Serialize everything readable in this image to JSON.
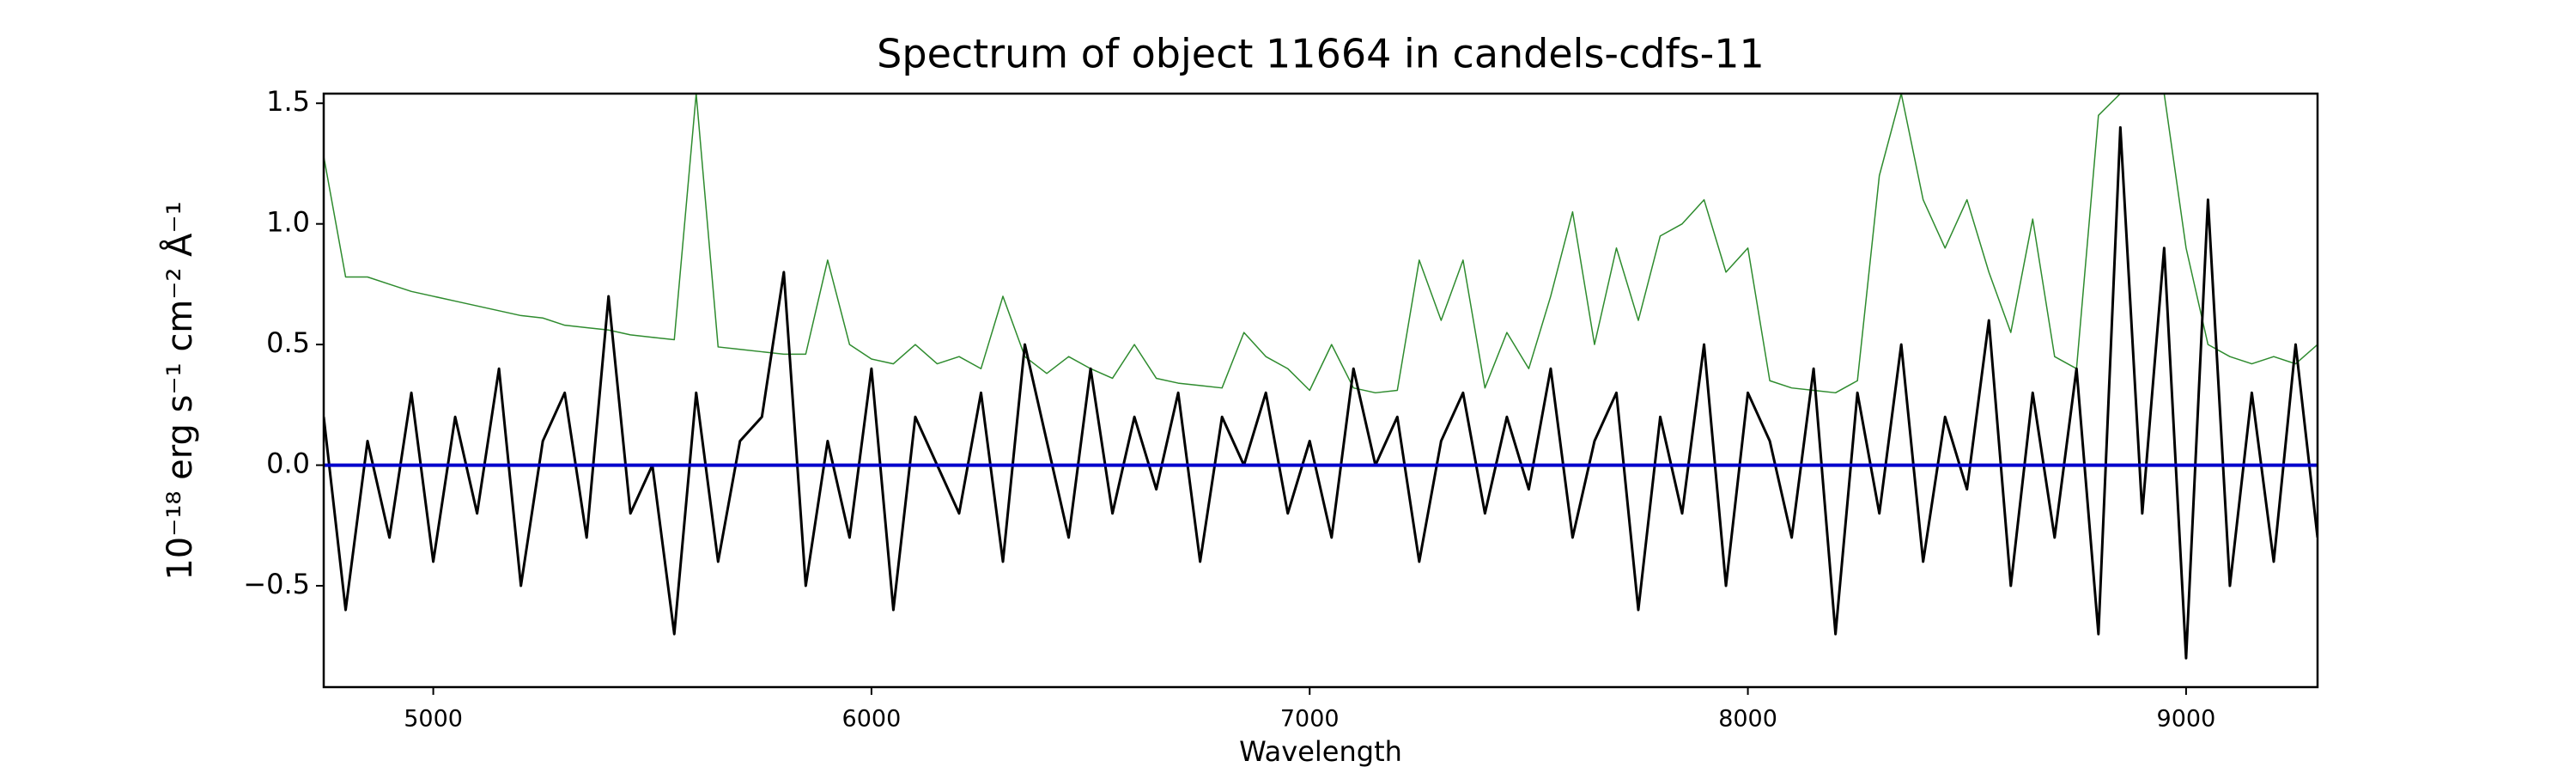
{
  "chart_data": {
    "type": "line",
    "title": "Spectrum of object 11664 in candels-cdfs-11",
    "xlabel": "Wavelength",
    "ylabel": "10⁻¹⁸ erg s⁻¹ cm⁻² Å⁻¹",
    "x": [
      4750,
      4800,
      4850,
      4900,
      4950,
      5000,
      5050,
      5100,
      5150,
      5200,
      5250,
      5300,
      5350,
      5400,
      5450,
      5500,
      5550,
      5600,
      5650,
      5700,
      5750,
      5800,
      5850,
      5900,
      5950,
      6000,
      6050,
      6100,
      6150,
      6200,
      6250,
      6300,
      6350,
      6400,
      6450,
      6500,
      6550,
      6600,
      6650,
      6700,
      6750,
      6800,
      6850,
      6900,
      6950,
      7000,
      7050,
      7100,
      7150,
      7200,
      7250,
      7300,
      7350,
      7400,
      7450,
      7500,
      7550,
      7600,
      7650,
      7700,
      7750,
      7800,
      7850,
      7900,
      7950,
      8000,
      8050,
      8100,
      8150,
      8200,
      8250,
      8300,
      8350,
      8400,
      8450,
      8500,
      8550,
      8600,
      8650,
      8700,
      8750,
      8800,
      8850,
      8900,
      8950,
      9000,
      9050,
      9100,
      9150,
      9200,
      9250,
      9300
    ],
    "series": [
      {
        "color": "#000000",
        "width": 3,
        "values": [
          0.2,
          -0.6,
          0.1,
          -0.3,
          0.3,
          -0.4,
          0.2,
          -0.2,
          0.4,
          -0.5,
          0.1,
          0.3,
          -0.3,
          0.7,
          -0.2,
          0.0,
          -0.7,
          0.3,
          -0.4,
          0.1,
          0.2,
          0.8,
          -0.5,
          0.1,
          -0.3,
          0.4,
          -0.6,
          0.2,
          0.0,
          -0.2,
          0.3,
          -0.4,
          0.5,
          0.1,
          -0.3,
          0.4,
          -0.2,
          0.2,
          -0.1,
          0.3,
          -0.4,
          0.2,
          0.0,
          0.3,
          -0.2,
          0.1,
          -0.3,
          0.4,
          0.0,
          0.2,
          -0.4,
          0.1,
          0.3,
          -0.2,
          0.2,
          -0.1,
          0.4,
          -0.3,
          0.1,
          0.3,
          -0.6,
          0.2,
          -0.2,
          0.5,
          -0.5,
          0.3,
          0.1,
          -0.3,
          0.4,
          -0.7,
          0.3,
          -0.2,
          0.5,
          -0.4,
          0.2,
          -0.1,
          0.6,
          -0.5,
          0.3,
          -0.3,
          0.4,
          -0.7,
          1.4,
          -0.2,
          0.9,
          -0.8,
          1.1,
          -0.5,
          0.3,
          -0.4,
          0.5,
          -0.3
        ]
      },
      {
        "color": "#2e8b2e",
        "width": 1.5,
        "values": [
          1.28,
          0.78,
          0.78,
          0.75,
          0.72,
          0.7,
          0.68,
          0.66,
          0.64,
          0.62,
          0.61,
          0.58,
          0.57,
          0.56,
          0.54,
          0.53,
          0.52,
          1.54,
          0.49,
          0.48,
          0.47,
          0.46,
          0.46,
          0.85,
          0.5,
          0.44,
          0.42,
          0.5,
          0.42,
          0.45,
          0.4,
          0.7,
          0.45,
          0.38,
          0.45,
          0.4,
          0.36,
          0.5,
          0.36,
          0.34,
          0.33,
          0.32,
          0.55,
          0.45,
          0.4,
          0.31,
          0.5,
          0.32,
          0.3,
          0.31,
          0.85,
          0.6,
          0.85,
          0.32,
          0.55,
          0.4,
          0.7,
          1.05,
          0.5,
          0.9,
          0.6,
          0.95,
          1.0,
          1.1,
          0.8,
          0.9,
          0.35,
          0.32,
          0.31,
          0.3,
          0.35,
          1.2,
          1.54,
          1.1,
          0.9,
          1.1,
          0.8,
          0.55,
          1.02,
          0.45,
          0.4,
          1.45,
          1.54,
          1.54,
          1.54,
          0.9,
          0.5,
          0.45,
          0.42,
          0.45,
          0.42,
          0.5
        ]
      },
      {
        "color": "#0000cc",
        "width": 4,
        "values": [
          0,
          0,
          0,
          0,
          0,
          0,
          0,
          0,
          0,
          0,
          0,
          0,
          0,
          0,
          0,
          0,
          0,
          0,
          0,
          0,
          0,
          0,
          0,
          0,
          0,
          0,
          0,
          0,
          0,
          0,
          0,
          0,
          0,
          0,
          0,
          0,
          0,
          0,
          0,
          0,
          0,
          0,
          0,
          0,
          0,
          0,
          0,
          0,
          0,
          0,
          0,
          0,
          0,
          0,
          0,
          0,
          0,
          0,
          0,
          0,
          0,
          0,
          0,
          0,
          0,
          0,
          0,
          0,
          0,
          0,
          0,
          0,
          0,
          0,
          0,
          0,
          0,
          0,
          0,
          0,
          0,
          0,
          0,
          0,
          0,
          0,
          0,
          0,
          0,
          0,
          0,
          0
        ]
      }
    ],
    "xlim": [
      4750,
      9300
    ],
    "xticks": [
      5000,
      6000,
      7000,
      8000,
      9000
    ],
    "ylim": [
      -0.92,
      1.54
    ],
    "yticks": [
      {
        "value": -0.5,
        "label": "−0.5"
      },
      {
        "value": 0,
        "label": "0.0"
      },
      {
        "value": 0.5,
        "label": "0.5"
      },
      {
        "value": 1,
        "label": "1.0"
      },
      {
        "value": 1.5,
        "label": "1.5"
      }
    ]
  }
}
